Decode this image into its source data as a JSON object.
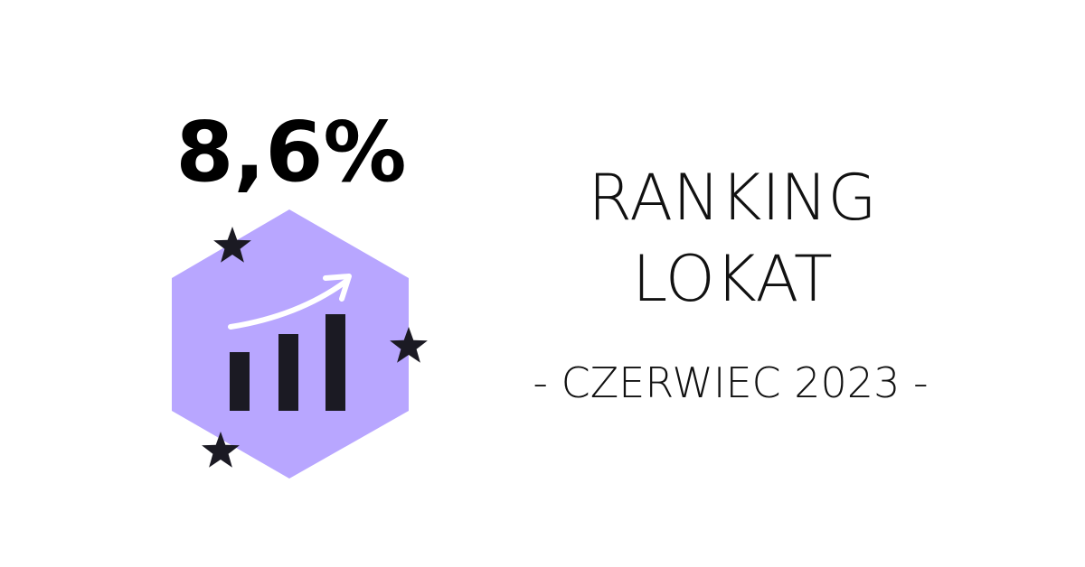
{
  "badge": {
    "rate": "8,6%"
  },
  "title": {
    "lines": [
      "RANKING",
      "LOKAT"
    ]
  },
  "subtitle": "- CZERWIEC 2023 -"
}
